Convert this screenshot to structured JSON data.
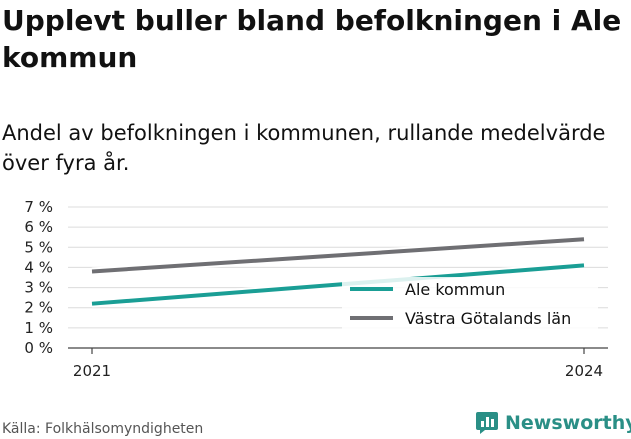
{
  "title": "Upplevt buller bland befolkningen i Ale kommun",
  "subtitle": "Andel av befolkningen i kommunen, rullande medelvärde över fyra år.",
  "source": "Källa: Folkhälsomyndigheten",
  "brand": {
    "name": "Newsworthy",
    "icon": "bar-chart-logo-icon",
    "color": "#2a8f86"
  },
  "chart_data": {
    "type": "line",
    "x": [
      2021,
      2024
    ],
    "ylim": [
      0,
      7
    ],
    "y_ticks": [
      "0 %",
      "1 %",
      "2 %",
      "3 %",
      "4 %",
      "5 %",
      "6 %",
      "7 %"
    ],
    "x_ticks": [
      "2021",
      "2024"
    ],
    "grid": true,
    "legend_position": "bottom-right",
    "series": [
      {
        "name": "Ale kommun",
        "color": "#1a9e95",
        "values": [
          2.2,
          4.1
        ]
      },
      {
        "name": "Västra Götalands län",
        "color": "#6f6f73",
        "values": [
          3.8,
          5.4
        ]
      }
    ]
  }
}
